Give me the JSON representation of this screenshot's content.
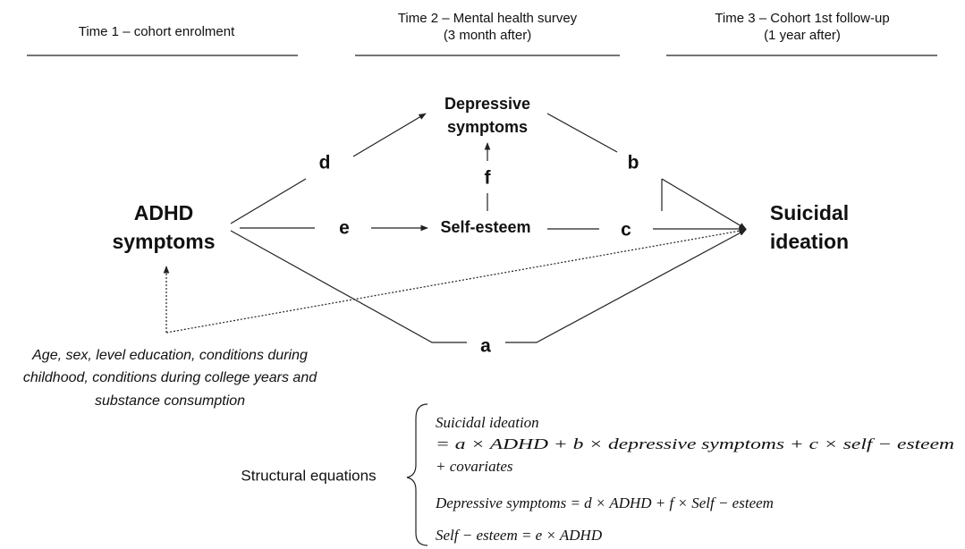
{
  "headers": [
    {
      "lines": [
        "Time 1 – cohort enrolment"
      ]
    },
    {
      "lines": [
        "Time 2 – Mental health survey",
        "(3 month after)"
      ]
    },
    {
      "lines": [
        "Time 3 – Cohort 1st follow-up",
        "(1 year after)"
      ]
    }
  ],
  "nodes": [
    {
      "lines": [
        "ADHD",
        "symptoms"
      ]
    },
    {
      "lines": [
        "Depressive",
        "symptoms"
      ]
    },
    {
      "lines": [
        "Self-esteem"
      ]
    },
    {
      "lines": [
        "Suicidal",
        "ideation"
      ]
    }
  ],
  "paths": [
    "a",
    "b",
    "c",
    "d",
    "e",
    "f"
  ],
  "covariates": [
    "Age, sex, level education, conditions during",
    "childhood, conditions during college years and",
    "substance consumption"
  ],
  "equations": {
    "label": "Structural equations",
    "lines": [
      "Suicidal ideation",
      "= a × ADHD + b × depressive symptoms + c × self − esteem",
      "+ covariates",
      "Depressive symptoms = d × ADHD + f × Self − esteem",
      "Self − esteem = e × ADHD"
    ]
  }
}
